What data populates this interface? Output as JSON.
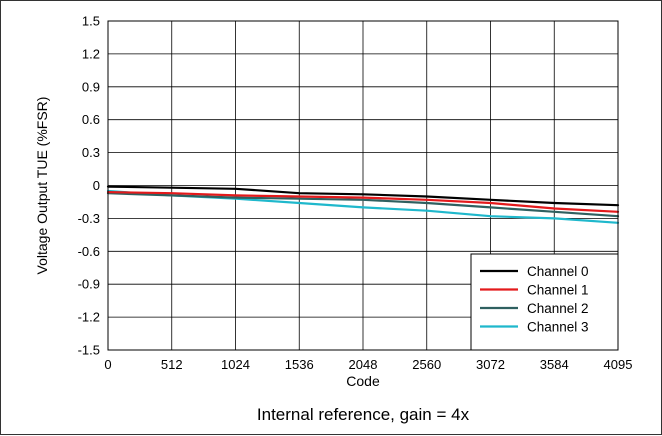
{
  "chart_data": {
    "type": "line",
    "xlabel": "Code",
    "ylabel": "Voltage Output TUE (%FSR)",
    "caption": "Internal reference, gain = 4x",
    "xlim": [
      0,
      4095
    ],
    "ylim": [
      -1.5,
      1.5
    ],
    "x_ticks": [
      "0",
      "512",
      "1024",
      "1536",
      "2048",
      "2560",
      "3072",
      "3584",
      "4095"
    ],
    "y_ticks": [
      "1.5",
      "1.2",
      "0.9",
      "0.6",
      "0.3",
      "0",
      "-0.3",
      "-0.6",
      "-0.9",
      "-1.2",
      "-1.5"
    ],
    "grid": true,
    "legend_position": "bottom-right",
    "x": [
      0,
      512,
      1024,
      1536,
      2048,
      2560,
      3072,
      3584,
      4095
    ],
    "series": [
      {
        "name": "Channel 0",
        "color": "#000000",
        "values": [
          -0.01,
          -0.02,
          -0.03,
          -0.07,
          -0.08,
          -0.1,
          -0.13,
          -0.16,
          -0.18
        ]
      },
      {
        "name": "Channel 1",
        "color": "#e31a1c",
        "values": [
          -0.06,
          -0.07,
          -0.09,
          -0.1,
          -0.11,
          -0.13,
          -0.16,
          -0.21,
          -0.24
        ]
      },
      {
        "name": "Channel 2",
        "color": "#2f6060",
        "values": [
          -0.07,
          -0.09,
          -0.11,
          -0.12,
          -0.13,
          -0.16,
          -0.2,
          -0.24,
          -0.28
        ]
      },
      {
        "name": "Channel 3",
        "color": "#1fb8cc",
        "values": [
          -0.05,
          -0.09,
          -0.12,
          -0.16,
          -0.2,
          -0.23,
          -0.28,
          -0.3,
          -0.34
        ]
      }
    ]
  }
}
